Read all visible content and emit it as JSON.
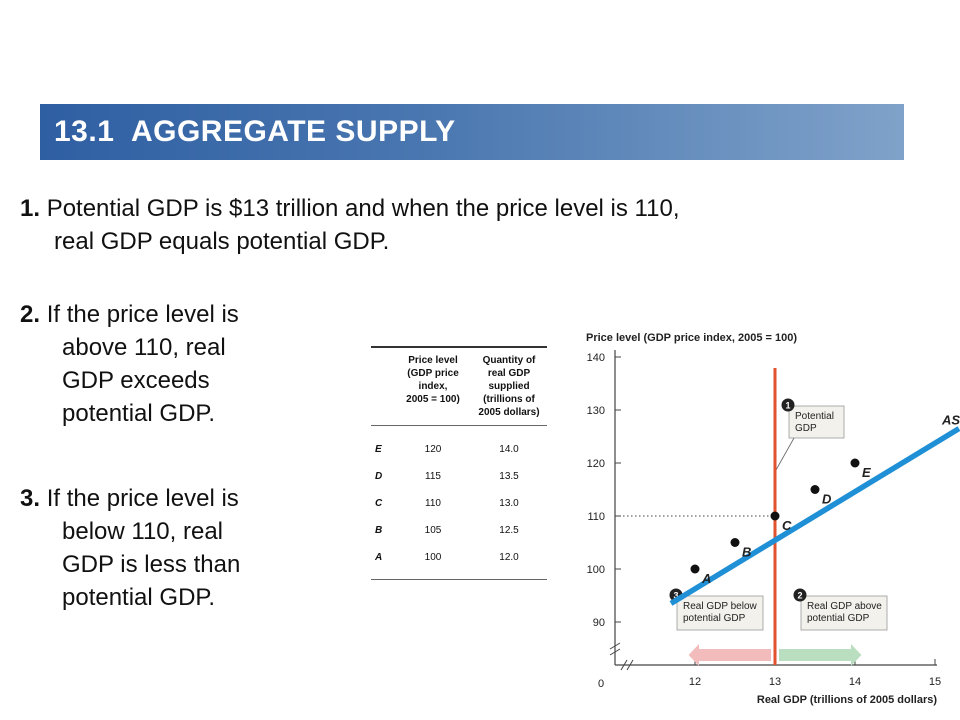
{
  "slide": {
    "title": "13.1  AGGREGATE SUPPLY",
    "points": [
      {
        "num": "1.",
        "line1": "Potential GDP is $13 trillion and when the price level is 110,",
        "line2": "real GDP equals potential GDP."
      },
      {
        "num": "2.",
        "line1": "If the price level is",
        "lines": [
          "above 110, real",
          "GDP exceeds",
          "potential GDP."
        ]
      },
      {
        "num": "3.",
        "line1": "If the price level is",
        "lines": [
          "below 110, real",
          "GDP is less than",
          "potential GDP."
        ]
      }
    ]
  },
  "table": {
    "header_price": [
      "Price level",
      "(GDP price",
      "index,",
      "2005 = 100)"
    ],
    "header_qty": [
      "Quantity of",
      "real GDP",
      "supplied",
      "(trillions of",
      "2005 dollars)"
    ],
    "rows": [
      {
        "label": "E",
        "price": "120",
        "qty": "14.0"
      },
      {
        "label": "D",
        "price": "115",
        "qty": "13.5"
      },
      {
        "label": "C",
        "price": "110",
        "qty": "13.0"
      },
      {
        "label": "B",
        "price": "105",
        "qty": "12.5"
      },
      {
        "label": "A",
        "price": "100",
        "qty": "12.0"
      }
    ]
  },
  "chart_data": {
    "type": "line",
    "ylabel": "Price level (GDP price index, 2005 = 100)",
    "xlabel": "Real GDP (trillions of 2005 dollars)",
    "xlim": [
      11.5,
      15
    ],
    "ylim": [
      85,
      140
    ],
    "x_ticks": [
      "12",
      "13",
      "14",
      "15"
    ],
    "y_ticks": [
      "90",
      "100",
      "110",
      "120",
      "130",
      "140"
    ],
    "origin_label": "0",
    "series": [
      {
        "name": "AS",
        "line": [
          [
            11.7,
            93.5
          ],
          [
            15.3,
            126.5
          ]
        ],
        "points": [
          {
            "label": "A",
            "x": 12.0,
            "y": 100
          },
          {
            "label": "B",
            "x": 12.5,
            "y": 105
          },
          {
            "label": "C",
            "x": 13.0,
            "y": 110
          },
          {
            "label": "D",
            "x": 13.5,
            "y": 115
          },
          {
            "label": "E",
            "x": 14.0,
            "y": 120
          }
        ]
      }
    ],
    "potential_gdp": 13,
    "annotations": [
      {
        "num": "1",
        "lines": [
          "Potential",
          "GDP"
        ]
      },
      {
        "num": "2",
        "lines": [
          "Real GDP above",
          "potential GDP"
        ]
      },
      {
        "num": "3",
        "lines": [
          "Real GDP below",
          "potential GDP"
        ]
      }
    ],
    "colors": {
      "as_line": "#1f8fd6",
      "potential_line": "#e2522e",
      "left_arrow": "#f3bcbc",
      "right_arrow": "#b9dfc0"
    }
  }
}
